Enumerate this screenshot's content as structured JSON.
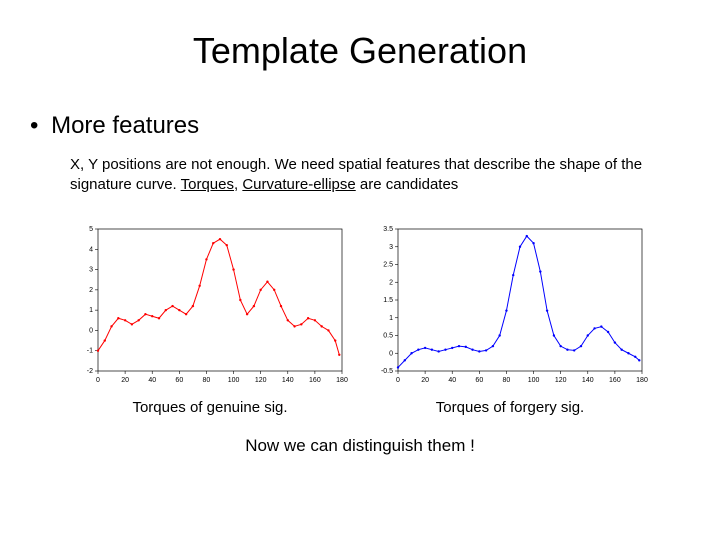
{
  "title": "Template Generation",
  "bullet": "More features",
  "body_pre": "X, Y positions are not enough. We need spatial features that describe the shape of the signature curve. ",
  "body_u1": "Torques",
  "body_mid": ", ",
  "body_u2": "Curvature-ellipse",
  "body_post": " are candidates",
  "chart_left": {
    "caption": "Torques of genuine sig.",
    "type": "line",
    "line_color": "#ff0000",
    "marker_color": "#ff0000",
    "background_color": "#ffffff",
    "axis_color": "#000000",
    "xlim": [
      0,
      180
    ],
    "xtick_step": 20,
    "ylim": [
      -2,
      5
    ],
    "yticks": [
      -2,
      -1,
      0,
      1,
      2,
      3,
      4,
      5
    ],
    "data": [
      [
        0,
        -1.0
      ],
      [
        5,
        -0.5
      ],
      [
        10,
        0.2
      ],
      [
        15,
        0.6
      ],
      [
        20,
        0.5
      ],
      [
        25,
        0.3
      ],
      [
        30,
        0.5
      ],
      [
        35,
        0.8
      ],
      [
        40,
        0.7
      ],
      [
        45,
        0.6
      ],
      [
        50,
        1.0
      ],
      [
        55,
        1.2
      ],
      [
        60,
        1.0
      ],
      [
        65,
        0.8
      ],
      [
        70,
        1.2
      ],
      [
        75,
        2.2
      ],
      [
        80,
        3.5
      ],
      [
        85,
        4.3
      ],
      [
        90,
        4.5
      ],
      [
        95,
        4.2
      ],
      [
        100,
        3.0
      ],
      [
        105,
        1.5
      ],
      [
        110,
        0.8
      ],
      [
        115,
        1.2
      ],
      [
        120,
        2.0
      ],
      [
        125,
        2.4
      ],
      [
        130,
        2.0
      ],
      [
        135,
        1.2
      ],
      [
        140,
        0.5
      ],
      [
        145,
        0.2
      ],
      [
        150,
        0.3
      ],
      [
        155,
        0.6
      ],
      [
        160,
        0.5
      ],
      [
        165,
        0.2
      ],
      [
        170,
        0.0
      ],
      [
        175,
        -0.5
      ],
      [
        178,
        -1.2
      ]
    ]
  },
  "chart_right": {
    "caption": "Torques of forgery sig.",
    "type": "line",
    "line_color": "#0000ff",
    "marker_color": "#0000ff",
    "background_color": "#ffffff",
    "axis_color": "#000000",
    "xlim": [
      0,
      180
    ],
    "xtick_step": 20,
    "ylim": [
      -0.5,
      3.5
    ],
    "yticks": [
      -0.5,
      0,
      0.5,
      1,
      1.5,
      2,
      2.5,
      3,
      3.5
    ],
    "data": [
      [
        0,
        -0.4
      ],
      [
        5,
        -0.2
      ],
      [
        10,
        0.0
      ],
      [
        15,
        0.1
      ],
      [
        20,
        0.15
      ],
      [
        25,
        0.1
      ],
      [
        30,
        0.05
      ],
      [
        35,
        0.1
      ],
      [
        40,
        0.15
      ],
      [
        45,
        0.2
      ],
      [
        50,
        0.18
      ],
      [
        55,
        0.1
      ],
      [
        60,
        0.05
      ],
      [
        65,
        0.08
      ],
      [
        70,
        0.2
      ],
      [
        75,
        0.5
      ],
      [
        80,
        1.2
      ],
      [
        85,
        2.2
      ],
      [
        90,
        3.0
      ],
      [
        95,
        3.3
      ],
      [
        100,
        3.1
      ],
      [
        105,
        2.3
      ],
      [
        110,
        1.2
      ],
      [
        115,
        0.5
      ],
      [
        120,
        0.2
      ],
      [
        125,
        0.1
      ],
      [
        130,
        0.08
      ],
      [
        135,
        0.2
      ],
      [
        140,
        0.5
      ],
      [
        145,
        0.7
      ],
      [
        150,
        0.75
      ],
      [
        155,
        0.6
      ],
      [
        160,
        0.3
      ],
      [
        165,
        0.1
      ],
      [
        170,
        0.0
      ],
      [
        175,
        -0.1
      ],
      [
        178,
        -0.2
      ]
    ]
  },
  "conclusion": "Now we can distinguish them !"
}
